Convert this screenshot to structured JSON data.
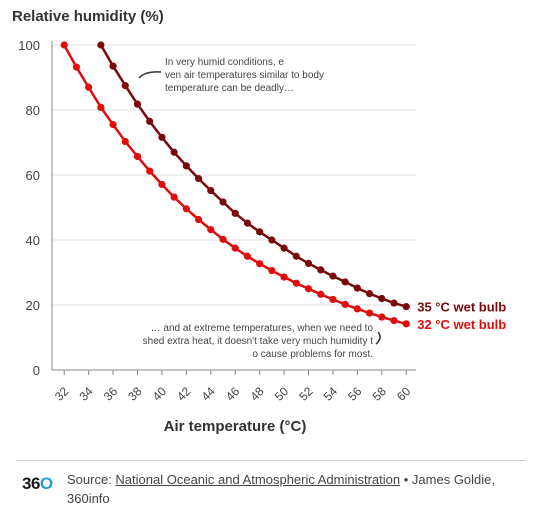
{
  "chart_data": {
    "type": "line",
    "ylabel": "Relative humidity (%)",
    "xlabel": "Air temperature (°C)",
    "xlim": [
      31,
      60
    ],
    "ylim": [
      0,
      100
    ],
    "xticks": [
      32,
      34,
      36,
      38,
      40,
      42,
      44,
      46,
      48,
      50,
      52,
      54,
      56,
      58,
      60
    ],
    "yticks": [
      0,
      20,
      40,
      60,
      80,
      100
    ],
    "grid": true,
    "series": [
      {
        "name": "35 °C wet bulb",
        "color": "#7a0a0a",
        "x": [
          35,
          36,
          37,
          38,
          39,
          40,
          41,
          42,
          43,
          44,
          45,
          46,
          47,
          48,
          49,
          50,
          51,
          52,
          53,
          54,
          55,
          56,
          57,
          58,
          59,
          60
        ],
        "y": [
          100,
          93.5,
          87.5,
          81.8,
          76.5,
          71.6,
          67,
          62.8,
          58.9,
          55.2,
          51.7,
          48.2,
          45.2,
          42.5,
          40,
          37.5,
          35,
          32.8,
          30.8,
          28.9,
          27.1,
          25.2,
          23.5,
          22,
          20.6,
          19.5
        ]
      },
      {
        "name": "32 °C wet bulb",
        "color": "#e00d0d",
        "x": [
          32,
          33,
          34,
          35,
          36,
          37,
          38,
          39,
          40,
          41,
          42,
          43,
          44,
          45,
          46,
          47,
          48,
          49,
          50,
          51,
          52,
          53,
          54,
          55,
          56,
          57,
          58,
          59,
          60
        ],
        "y": [
          100,
          93.2,
          87,
          80.8,
          75.5,
          70.3,
          65.7,
          61.2,
          57.1,
          53.2,
          49.6,
          46.3,
          43.2,
          40.2,
          37.5,
          35,
          32.7,
          30.6,
          28.6,
          26.7,
          25,
          23.3,
          21.7,
          20.2,
          18.8,
          17.5,
          16.3,
          15.2,
          14.2
        ]
      }
    ],
    "annotations": [
      "In very humid conditions, even air temperatures similar to body temperature can be deadly…",
      "… and at extreme temperatures, when we need to shed extra heat, it doesn't take very much humidity to cause problems for most."
    ]
  },
  "footer": {
    "logo_digits": "36",
    "logo_o": "O",
    "source_prefix": "Source: ",
    "source_link": "National Oceanic and Atmospheric Administration",
    "source_suffix": " • James Goldie, 360info"
  }
}
